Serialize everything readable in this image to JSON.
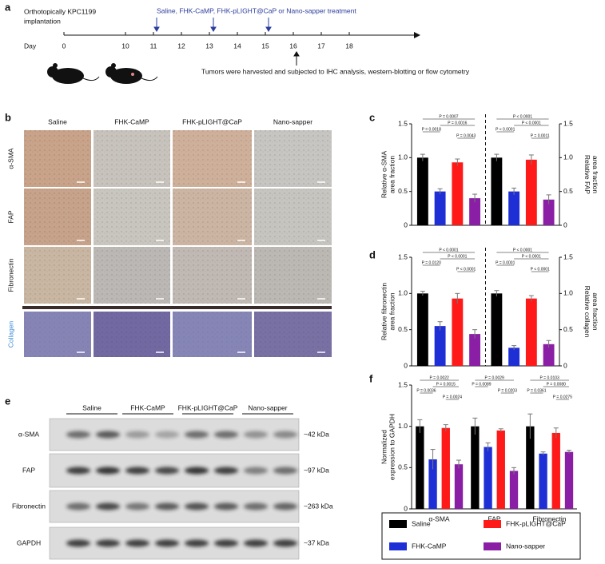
{
  "panel_labels": [
    "a",
    "b",
    "c",
    "d",
    "e",
    "f"
  ],
  "timeline": {
    "day_label": "Day",
    "days": [
      "0",
      "10",
      "11",
      "12",
      "13",
      "14",
      "15",
      "16",
      "17",
      "18"
    ],
    "implant": [
      "Orthotopically KPC1199",
      "implantation"
    ],
    "treatment": "Saline, FHK-CaMP, FHK-pLIGHT@CaP or Nano-sapper treatment",
    "harvest": "Tumors were harvested and subjected to IHC analysis, western-blotting or flow cytometry"
  },
  "ihc": {
    "columns": [
      "Saline",
      "FHK-CaMP",
      "FHK-pLIGHT@CaP",
      "Nano-sapper"
    ],
    "rows": [
      "α-SMA",
      "FAP",
      "Fibronectin",
      "Collagen"
    ]
  },
  "blot": {
    "groups": [
      "Saline",
      "FHK-CaMP",
      "FHK-pLIGHT@CaP",
      "Nano-sapper"
    ],
    "rows": [
      "α-SMA",
      "FAP",
      "Fibronectin",
      "GAPDH"
    ],
    "sizes": [
      "~42 kDa",
      "~97 kDa",
      "~263 kDa",
      "~37 kDa"
    ]
  },
  "chart_data": [
    {
      "type": "bar",
      "ylabel": [
        "Relative α-SMA",
        "area fraction"
      ],
      "y2label": [
        "Relative FAP",
        "area fraction"
      ],
      "categories": [
        null,
        null
      ],
      "ylim": [
        0,
        1.5
      ],
      "yticks": [
        0,
        0.5,
        {
          "value": 1,
          "label": "1.0"
        },
        1.5
      ],
      "y2lim": [
        0,
        1.5
      ],
      "y2ticks": [
        0,
        0.5,
        {
          "value": 1,
          "label": "1.0"
        },
        1.5
      ],
      "series": [
        {
          "color": "#000000",
          "values": [
            1.0,
            1.0
          ],
          "errors": [
            0.05,
            0.05
          ]
        },
        {
          "color": "#1f2fd6",
          "values": [
            0.5,
            0.5
          ],
          "errors": [
            0.04,
            0.05
          ]
        },
        {
          "color": "#ff1a1a",
          "values": [
            0.93,
            0.97
          ],
          "errors": [
            0.05,
            0.07
          ]
        },
        {
          "color": "#8a1fa6",
          "values": [
            0.4,
            0.38
          ],
          "errors": [
            0.06,
            0.07
          ]
        }
      ],
      "annotations": [
        [
          "P = 0.0007",
          "P = 0.0016",
          "P = 0.0018",
          "P = 0.0043"
        ],
        [
          "P < 0.0001",
          "P < 0.0001",
          "P < 0.0001",
          "P = 0.0011"
        ]
      ]
    },
    {
      "type": "bar",
      "ylabel": [
        "Relative fibronectin",
        "area fraction"
      ],
      "y2label": [
        "Relative collagen",
        "area fraction"
      ],
      "categories": [
        null,
        null
      ],
      "ylim": [
        0,
        1.5
      ],
      "yticks": [
        0,
        0.5,
        {
          "value": 1,
          "label": "1.0"
        },
        1.5
      ],
      "y2lim": [
        0,
        1.5
      ],
      "y2ticks": [
        0,
        0.5,
        {
          "value": 1,
          "label": "1.0"
        },
        1.5
      ],
      "series": [
        {
          "color": "#000000",
          "values": [
            1.0,
            1.0
          ],
          "errors": [
            0.03,
            0.04
          ]
        },
        {
          "color": "#1f2fd6",
          "values": [
            0.55,
            0.25
          ],
          "errors": [
            0.06,
            0.03
          ]
        },
        {
          "color": "#ff1a1a",
          "values": [
            0.93,
            0.93
          ],
          "errors": [
            0.07,
            0.04
          ]
        },
        {
          "color": "#8a1fa6",
          "values": [
            0.44,
            0.3
          ],
          "errors": [
            0.06,
            0.05
          ]
        }
      ],
      "annotations": [
        [
          "P < 0.0001",
          "P < 0.0001",
          "P = 0.0120",
          "P < 0.0001"
        ],
        [
          "P < 0.0001",
          "P < 0.0001",
          "P = 0.0001",
          "P < 0.0001"
        ]
      ]
    },
    {
      "type": "bar",
      "ylabel": [
        "Normalized",
        "expression to GAPDH"
      ],
      "categories": [
        "α-SMA",
        "FAP",
        "Fibronectin"
      ],
      "ylim": [
        0,
        1.5
      ],
      "yticks": [
        0,
        0.5,
        {
          "value": 1,
          "label": "1.0"
        },
        1.5
      ],
      "series": [
        {
          "name": "Saline",
          "color": "#000000",
          "values": [
            1.0,
            1.0,
            1.0
          ],
          "errors": [
            0.08,
            0.1,
            0.15
          ]
        },
        {
          "name": "FHK-CaMP",
          "color": "#1f2fd6",
          "values": [
            0.6,
            0.75,
            0.67
          ],
          "errors": [
            0.12,
            0.05,
            0.02
          ]
        },
        {
          "name": "FHK-pLIGHT@CaP",
          "color": "#ff1a1a",
          "values": [
            0.98,
            0.95,
            0.92
          ],
          "errors": [
            0.04,
            0.02,
            0.06
          ]
        },
        {
          "name": "Nano-sapper",
          "color": "#8a1fa6",
          "values": [
            0.54,
            0.46,
            0.69
          ],
          "errors": [
            0.05,
            0.04,
            0.02
          ]
        }
      ],
      "annotations": [
        [
          "P = 0.0022",
          "P = 0.0015",
          "P = 0.0036",
          "P = 0.0024"
        ],
        [
          "P = 0.0029",
          "P = 0.0089",
          "P = 0.0203"
        ],
        [
          "P = 0.0103",
          "P = 0.0080",
          "P = 0.0361",
          "P = 0.0275"
        ]
      ]
    }
  ]
}
